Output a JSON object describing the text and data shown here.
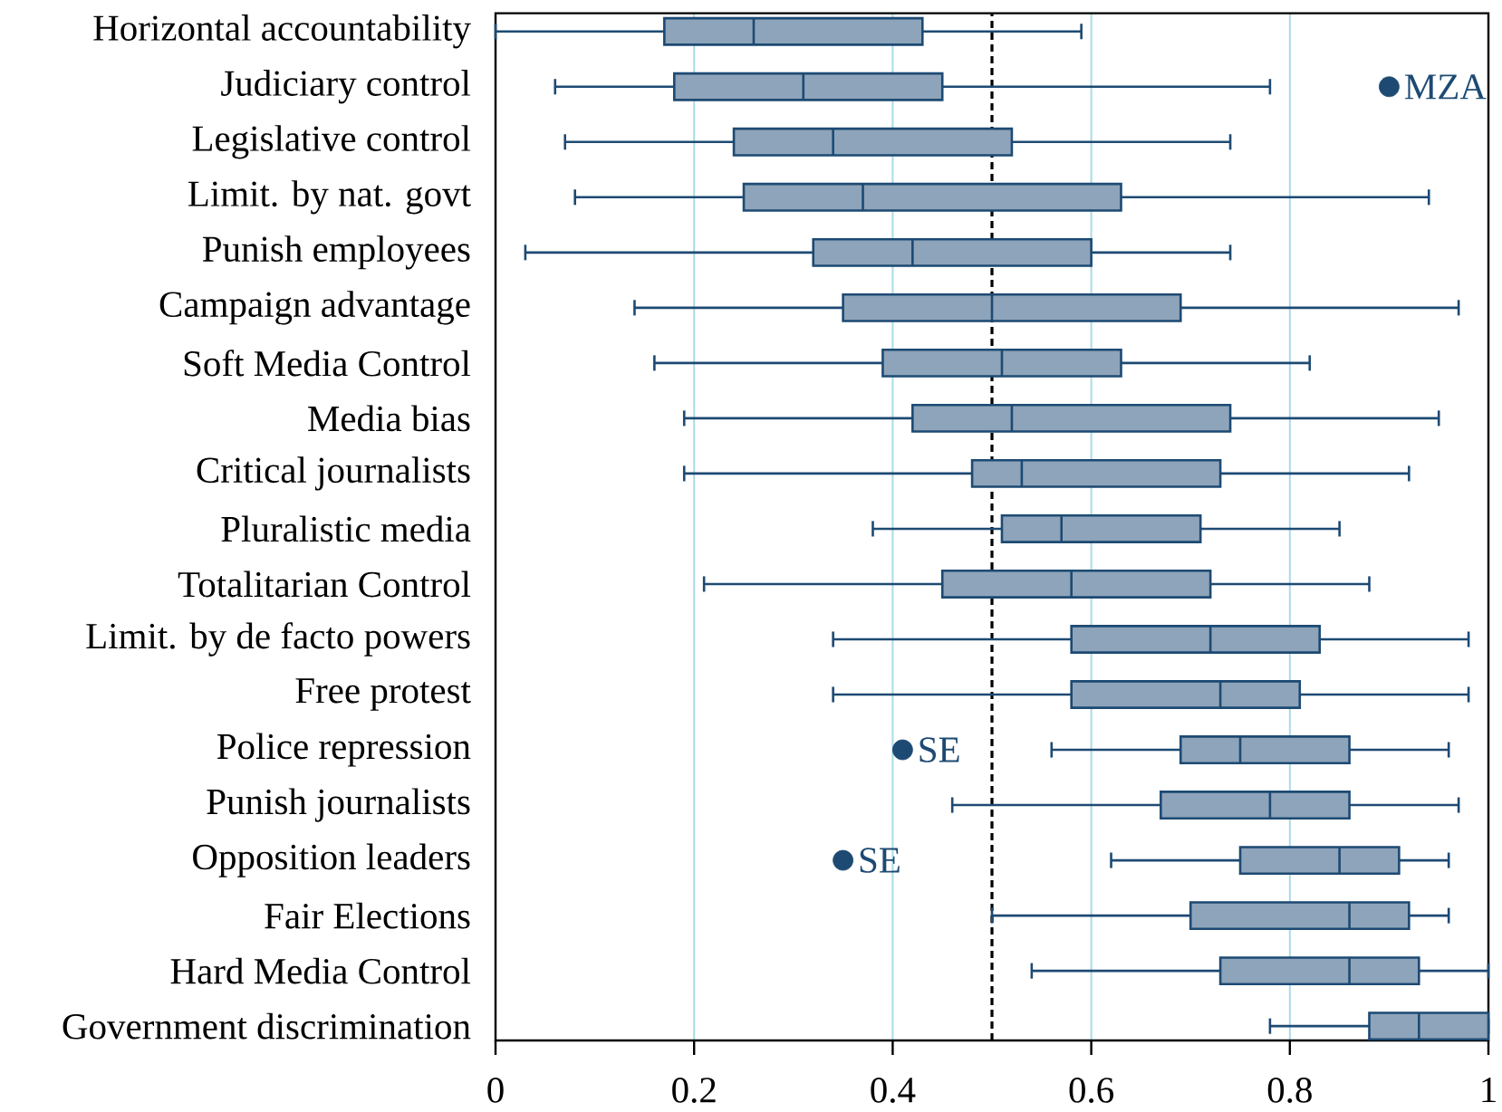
{
  "chart_data": {
    "type": "box",
    "orientation": "horizontal",
    "categories": [
      "Horizontal accountability",
      "Judiciary control",
      "Legislative control",
      "Limit. by nat. govt",
      "Punish employees",
      "Campaign advantage",
      "Soft Media Control",
      "Media bias",
      "Critical journalists",
      "Pluralistic media",
      "Totalitarian Control",
      "Limit. by de facto powers",
      "Free protest",
      "Police repression",
      "Punish journalists",
      "Opposition leaders",
      "Fair Elections",
      "Hard Media Control",
      "Government discrimination"
    ],
    "boxes": [
      {
        "low": 0,
        "q1": 0.17,
        "median": 0.26,
        "q3": 0.43,
        "high": 0.59
      },
      {
        "low": 0.06,
        "q1": 0.18,
        "median": 0.31,
        "q3": 0.45,
        "high": 0.78,
        "outliers": [
          0.9
        ]
      },
      {
        "low": 0.07,
        "q1": 0.24,
        "median": 0.34,
        "q3": 0.52,
        "high": 0.74
      },
      {
        "low": 0.08,
        "q1": 0.25,
        "median": 0.37,
        "q3": 0.63,
        "high": 0.94
      },
      {
        "low": 0.03,
        "q1": 0.32,
        "median": 0.42,
        "q3": 0.6,
        "high": 0.74
      },
      {
        "low": 0.14,
        "q1": 0.35,
        "median": 0.5,
        "q3": 0.69,
        "high": 0.97
      },
      {
        "low": 0.16,
        "q1": 0.39,
        "median": 0.51,
        "q3": 0.63,
        "high": 0.82
      },
      {
        "low": 0.19,
        "q1": 0.42,
        "median": 0.52,
        "q3": 0.74,
        "high": 0.95
      },
      {
        "low": 0.19,
        "q1": 0.48,
        "median": 0.53,
        "q3": 0.73,
        "high": 0.92
      },
      {
        "low": 0.38,
        "q1": 0.51,
        "median": 0.57,
        "q3": 0.71,
        "high": 0.85
      },
      {
        "low": 0.21,
        "q1": 0.45,
        "median": 0.58,
        "q3": 0.72,
        "high": 0.88
      },
      {
        "low": 0.34,
        "q1": 0.58,
        "median": 0.72,
        "q3": 0.83,
        "high": 0.98
      },
      {
        "low": 0.34,
        "q1": 0.58,
        "median": 0.73,
        "q3": 0.81,
        "high": 0.98
      },
      {
        "low": 0.56,
        "q1": 0.69,
        "median": 0.75,
        "q3": 0.86,
        "high": 0.96,
        "outliers": [
          0.41
        ]
      },
      {
        "low": 0.46,
        "q1": 0.67,
        "median": 0.78,
        "q3": 0.86,
        "high": 0.97
      },
      {
        "low": 0.62,
        "q1": 0.75,
        "median": 0.85,
        "q3": 0.91,
        "high": 0.96,
        "outliers": [
          0.35
        ]
      },
      {
        "low": 0.5,
        "q1": 0.7,
        "median": 0.86,
        "q3": 0.92,
        "high": 0.96
      },
      {
        "low": 0.54,
        "q1": 0.73,
        "median": 0.86,
        "q3": 0.93,
        "high": 1
      },
      {
        "low": 0.78,
        "q1": 0.88,
        "median": 0.93,
        "q3": 1,
        "high": 1
      }
    ],
    "color": "#8EA4BA",
    "xlim": [
      0,
      1
    ],
    "xticks": [
      0,
      0.2,
      0.4,
      0.6,
      0.8,
      1
    ],
    "grid": "x",
    "ref_lines": [
      {
        "axis": "x",
        "value": 0.5,
        "color": "#000000",
        "line_style": "dashed"
      }
    ],
    "annotations": [
      "MZA",
      "SE",
      "SE"
    ]
  }
}
